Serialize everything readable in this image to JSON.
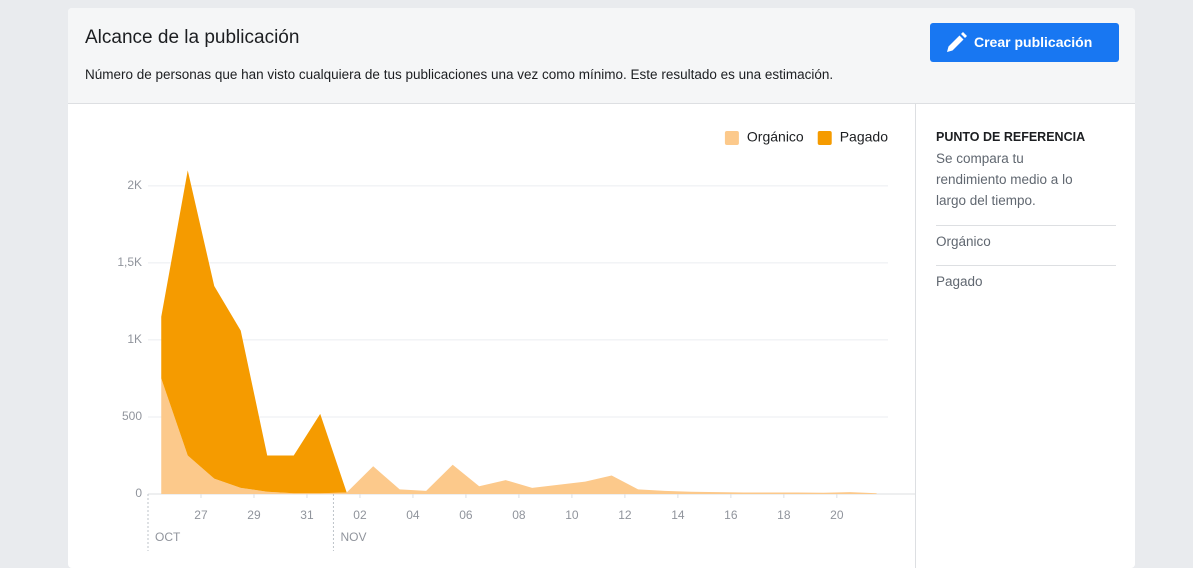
{
  "header": {
    "title": "Alcance de la publicación",
    "subtitle": "Número de personas que han visto cualquiera de tus publicaciones una vez como mínimo. Este resultado es una estimación.",
    "button": "Crear publicación"
  },
  "side_panel": {
    "title": "PUNTO DE REFERENCIA",
    "description": "Se compara tu rendimiento medio a lo largo del tiempo.",
    "items": [
      "Orgánico",
      "Pagado"
    ]
  },
  "chart_data": {
    "type": "area",
    "stacked": true,
    "x": [
      0,
      1,
      2,
      3,
      4,
      5,
      6,
      7,
      8,
      9,
      10,
      11,
      12,
      13,
      14,
      15,
      16,
      17,
      18,
      19,
      20,
      21,
      22,
      23,
      24,
      25,
      26,
      27
    ],
    "series": [
      {
        "name": "Orgánico",
        "color": "#fcc98b",
        "values": [
          750,
          250,
          100,
          40,
          15,
          5,
          5,
          10,
          180,
          30,
          20,
          190,
          50,
          90,
          40,
          60,
          80,
          120,
          30,
          20,
          15,
          12,
          10,
          10,
          10,
          8,
          12,
          5
        ]
      },
      {
        "name": "Pagado",
        "color": "#f59b00",
        "values": [
          400,
          1850,
          1250,
          1020,
          235,
          245,
          515,
          0,
          0,
          0,
          0,
          0,
          0,
          0,
          0,
          0,
          0,
          0,
          0,
          0,
          0,
          0,
          0,
          0,
          0,
          0,
          0,
          0
        ]
      }
    ],
    "xlim": [
      -0.5,
      28.45
    ],
    "xticks": [
      {
        "value": 1.5,
        "label": "27"
      },
      {
        "value": 3.5,
        "label": "29"
      },
      {
        "value": 5.5,
        "label": "31"
      },
      {
        "value": 7.5,
        "label": "02"
      },
      {
        "value": 9.5,
        "label": "04"
      },
      {
        "value": 11.5,
        "label": "06"
      },
      {
        "value": 13.5,
        "label": "08"
      },
      {
        "value": 15.5,
        "label": "10"
      },
      {
        "value": 17.5,
        "label": "12"
      },
      {
        "value": 19.5,
        "label": "14"
      },
      {
        "value": 21.5,
        "label": "16"
      },
      {
        "value": 23.5,
        "label": "18"
      },
      {
        "value": 25.5,
        "label": "20"
      }
    ],
    "months": [
      {
        "value": -0.5,
        "label": "OCT"
      },
      {
        "value": 6.5,
        "label": "NOV"
      }
    ],
    "ylim": [
      0,
      2200
    ],
    "yticks": [
      0,
      500,
      {
        "value": 1000,
        "label": "1K"
      },
      {
        "value": 1500,
        "label": "1,5K"
      },
      {
        "value": 2000,
        "label": "2K"
      }
    ],
    "grid": true,
    "legend": "top-right"
  }
}
